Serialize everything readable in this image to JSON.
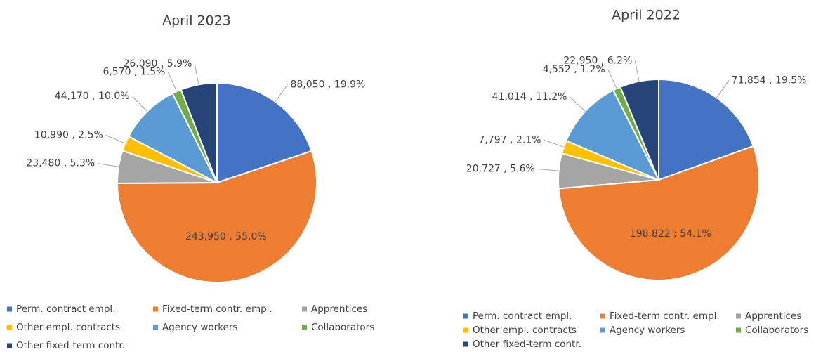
{
  "chart_data": [
    {
      "type": "pie",
      "title": "April 2023",
      "categories": [
        "Perm. contract empl.",
        "Fixed-term contr. empl.",
        "Apprentices",
        "Other empl. contracts",
        "Agency workers",
        "Collaborators",
        "Other fixed-term contr."
      ],
      "values": [
        88050,
        243950,
        23480,
        10990,
        44170,
        6570,
        26090
      ],
      "value_labels": [
        "88,050 , 19.9%",
        "243,950 , 55.0%",
        "23,480 , 5.3%",
        "10,990 , 2.5%",
        "44,170 , 10.0%",
        "6,570 , 1.5%",
        "26,090 , 5.9%"
      ],
      "colors": [
        "#4472c4",
        "#ed7d31",
        "#a5a5a5",
        "#ffc000",
        "#5b9bd5",
        "#70ad47",
        "#264478"
      ],
      "legend": "bottom"
    },
    {
      "type": "pie",
      "title": "April 2022",
      "categories": [
        "Perm. contract empl.",
        "Fixed-term contr. empl.",
        "Apprentices",
        "Other empl. contracts",
        "Agency workers",
        "Collaborators",
        "Other fixed-term contr."
      ],
      "values": [
        71854,
        198822,
        20727,
        7797,
        41014,
        4552,
        22950
      ],
      "value_labels": [
        "71,854 , 19.5%",
        "198,822 ; 54.1%",
        "20,727 , 5.6%",
        "7,797 , 2.1%",
        "41,014 , 11.2%",
        "4,552 , 1.2%",
        "22,950 , 6.2%"
      ],
      "colors": [
        "#4472c4",
        "#ed7d31",
        "#a5a5a5",
        "#ffc000",
        "#5b9bd5",
        "#70ad47",
        "#264478"
      ],
      "legend": "bottom"
    }
  ]
}
